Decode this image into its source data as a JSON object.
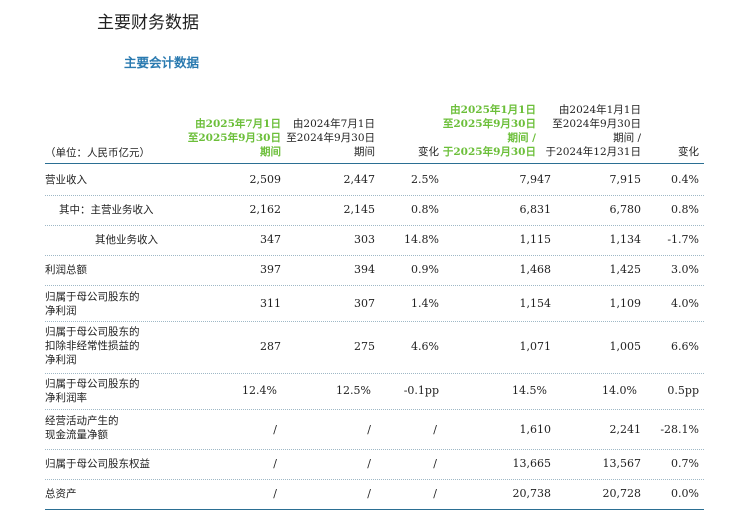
{
  "page": {
    "title": "主要财务数据",
    "section_title": "主要会计数据"
  },
  "table": {
    "unit_label": "（单位：人民币亿元）",
    "columns": [
      {
        "lines": [
          "由2025年7月1日",
          "至2025年9月30日",
          "期间"
        ],
        "highlight": true
      },
      {
        "lines": [
          "由2024年7月1日",
          "至2024年9月30日",
          "期间"
        ],
        "highlight": false
      },
      {
        "lines": [
          "变化"
        ],
        "highlight": false
      },
      {
        "lines": [
          "由2025年1月1日",
          "至2025年9月30日",
          "期间 /",
          "于2025年9月30日"
        ],
        "highlight": true
      },
      {
        "lines": [
          "由2024年1月1日",
          "至2024年9月30日",
          "期间 /",
          "于2024年12月31日"
        ],
        "highlight": false
      },
      {
        "lines": [
          "变化"
        ],
        "highlight": false
      }
    ],
    "rows": [
      {
        "label": [
          "营业收入"
        ],
        "values": [
          "2,509",
          "2,447",
          "2.5%",
          "7,947",
          "7,915",
          "0.4%"
        ]
      },
      {
        "label": [
          "其中：主营业务收入"
        ],
        "values": [
          "2,162",
          "2,145",
          "0.8%",
          "6,831",
          "6,780",
          "0.8%"
        ]
      },
      {
        "label": [
          "其他业务收入"
        ],
        "values": [
          "347",
          "303",
          "14.8%",
          "1,115",
          "1,134",
          "-1.7%"
        ]
      },
      {
        "label": [
          "利润总额"
        ],
        "values": [
          "397",
          "394",
          "0.9%",
          "1,468",
          "1,425",
          "3.0%"
        ]
      },
      {
        "label": [
          "归属于母公司股东的",
          "净利润"
        ],
        "values": [
          "311",
          "307",
          "1.4%",
          "1,154",
          "1,109",
          "4.0%"
        ]
      },
      {
        "label": [
          "归属于母公司股东的",
          "扣除非经常性损益的",
          "净利润"
        ],
        "values": [
          "287",
          "275",
          "4.6%",
          "1,071",
          "1,005",
          "6.6%"
        ]
      },
      {
        "label": [
          "归属于母公司股东的",
          "净利润率"
        ],
        "values": [
          "12.4%",
          "12.5%",
          "-0.1pp",
          "14.5%",
          "14.0%",
          "0.5pp"
        ]
      },
      {
        "label": [
          "经营活动产生的",
          "现金流量净额"
        ],
        "values": [
          "/",
          "/",
          "/",
          "1,610",
          "2,241",
          "-28.1%"
        ]
      },
      {
        "label": [
          "归属于母公司股东权益"
        ],
        "values": [
          "/",
          "/",
          "/",
          "13,665",
          "13,567",
          "0.7%"
        ]
      },
      {
        "label": [
          "总资产"
        ],
        "values": [
          "/",
          "/",
          "/",
          "20,738",
          "20,728",
          "0.0%"
        ]
      }
    ]
  }
}
